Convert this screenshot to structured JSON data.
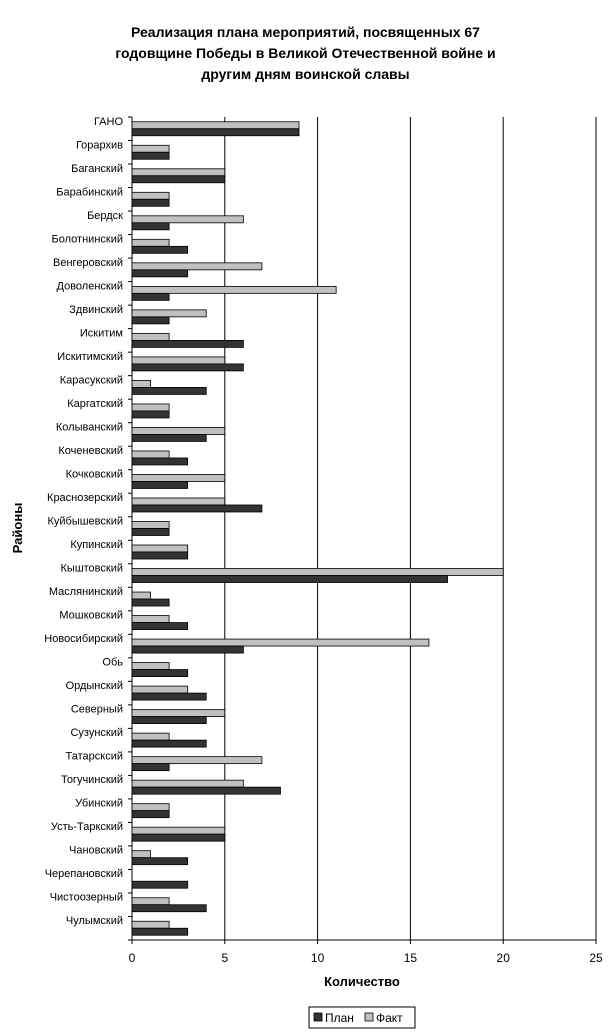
{
  "chart_data": {
    "type": "bar",
    "orientation": "horizontal",
    "title_lines": [
      "Реализация плана мероприятий, посвященных 67",
      "годовщине Победы в Великой Отечественной войне и",
      "другим дням воинской славы"
    ],
    "xlabel": "Количество",
    "ylabel": "Районы",
    "xlim": [
      0,
      25
    ],
    "xticks": [
      0,
      5,
      10,
      15,
      20,
      25
    ],
    "vertical_gridlines": true,
    "legend_position": "bottom",
    "categories": [
      "ГАНО",
      "Горархив",
      "Баганский",
      "Барабинский",
      "Бердск",
      "Болотнинский",
      "Венгеровский",
      "Доволенский",
      "Здвинский",
      "Искитим",
      "Искитимский",
      "Карасукский",
      "Каргатский",
      "Колыванский",
      "Коченевский",
      "Кочковский",
      "Краснозерский",
      "Куйбышевский",
      "Купинский",
      "Кыштовский",
      "Маслянинский",
      "Мошковский",
      "Новосибирский",
      "Обь",
      "Ордынский",
      "Северный",
      "Сузунский",
      "Татарсксий",
      "Тогучинский",
      "Убинский",
      "Усть-Таркский",
      "Чановский",
      "Черепановский",
      "Чистоозерный",
      "Чулымский"
    ],
    "series": [
      {
        "name": "План",
        "color": "#333333",
        "values": [
          9,
          2,
          5,
          2,
          2,
          3,
          3,
          2,
          2,
          6,
          6,
          4,
          2,
          4,
          3,
          3,
          7,
          2,
          3,
          17,
          2,
          3,
          6,
          3,
          4,
          4,
          4,
          2,
          8,
          2,
          5,
          3,
          3,
          4,
          3
        ]
      },
      {
        "name": "Факт",
        "color": "#c0c0c0",
        "values": [
          9,
          2,
          5,
          2,
          6,
          2,
          7,
          11,
          4,
          2,
          5,
          1,
          2,
          5,
          2,
          5,
          5,
          2,
          3,
          20,
          1,
          2,
          16,
          2,
          3,
          5,
          2,
          7,
          6,
          2,
          5,
          1,
          0,
          2,
          2
        ]
      }
    ]
  }
}
